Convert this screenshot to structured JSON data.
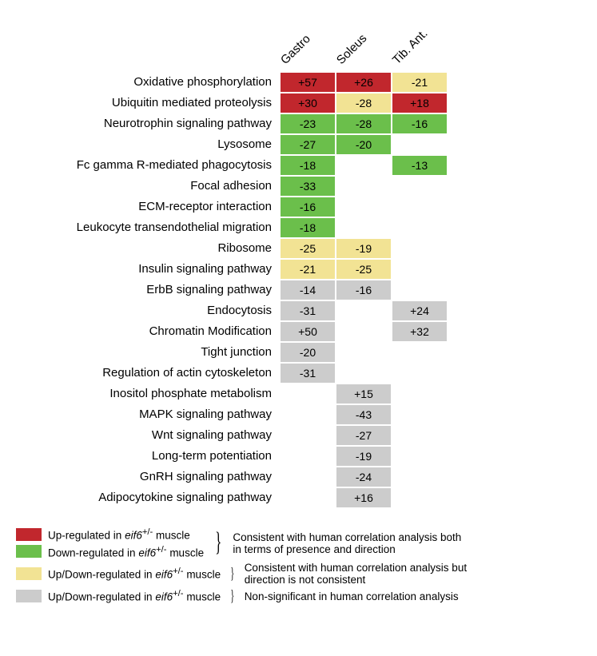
{
  "colors": {
    "red": "#c1272d",
    "green": "#6bbf4b",
    "yellow": "#f2e394",
    "grey": "#cccccc",
    "text": "#000000",
    "bg": "#ffffff"
  },
  "columns": [
    "Gastro",
    "Soleus",
    "Tib. Ant."
  ],
  "rows": [
    {
      "label": "Oxidative phosphorylation",
      "cells": [
        {
          "v": "+57",
          "c": "red"
        },
        {
          "v": "+26",
          "c": "red"
        },
        {
          "v": "-21",
          "c": "yellow"
        }
      ]
    },
    {
      "label": "Ubiquitin mediated proteolysis",
      "cells": [
        {
          "v": "+30",
          "c": "red"
        },
        {
          "v": "-28",
          "c": "yellow"
        },
        {
          "v": "+18",
          "c": "red"
        }
      ]
    },
    {
      "label": "Neurotrophin signaling pathway",
      "cells": [
        {
          "v": "-23",
          "c": "green"
        },
        {
          "v": "-28",
          "c": "green"
        },
        {
          "v": "-16",
          "c": "green"
        }
      ]
    },
    {
      "label": "Lysosome",
      "cells": [
        {
          "v": "-27",
          "c": "green"
        },
        {
          "v": "-20",
          "c": "green"
        },
        null
      ]
    },
    {
      "label": "Fc gamma R-mediated phagocytosis",
      "cells": [
        {
          "v": "-18",
          "c": "green"
        },
        null,
        {
          "v": "-13",
          "c": "green"
        }
      ]
    },
    {
      "label": "Focal adhesion",
      "cells": [
        {
          "v": "-33",
          "c": "green"
        },
        null,
        null
      ]
    },
    {
      "label": "ECM-receptor interaction",
      "cells": [
        {
          "v": "-16",
          "c": "green"
        },
        null,
        null
      ]
    },
    {
      "label": "Leukocyte transendothelial migration",
      "cells": [
        {
          "v": "-18",
          "c": "green"
        },
        null,
        null
      ]
    },
    {
      "label": "Ribosome",
      "cells": [
        {
          "v": "-25",
          "c": "yellow"
        },
        {
          "v": "-19",
          "c": "yellow"
        },
        null
      ]
    },
    {
      "label": "Insulin signaling pathway",
      "cells": [
        {
          "v": "-21",
          "c": "yellow"
        },
        {
          "v": "-25",
          "c": "yellow"
        },
        null
      ]
    },
    {
      "label": "ErbB signaling pathway",
      "cells": [
        {
          "v": "-14",
          "c": "grey"
        },
        {
          "v": "-16",
          "c": "grey"
        },
        null
      ]
    },
    {
      "label": "Endocytosis",
      "cells": [
        {
          "v": "-31",
          "c": "grey"
        },
        null,
        {
          "v": "+24",
          "c": "grey"
        }
      ]
    },
    {
      "label": "Chromatin Modification",
      "cells": [
        {
          "v": "+50",
          "c": "grey"
        },
        null,
        {
          "v": "+32",
          "c": "grey"
        }
      ]
    },
    {
      "label": "Tight junction",
      "cells": [
        {
          "v": "-20",
          "c": "grey"
        },
        null,
        null
      ]
    },
    {
      "label": "Regulation of actin cytoskeleton",
      "cells": [
        {
          "v": "-31",
          "c": "grey"
        },
        null,
        null
      ]
    },
    {
      "label": "Inositol phosphate metabolism",
      "cells": [
        null,
        {
          "v": "+15",
          "c": "grey"
        },
        null
      ]
    },
    {
      "label": "MAPK signaling pathway",
      "cells": [
        null,
        {
          "v": "-43",
          "c": "grey"
        },
        null
      ]
    },
    {
      "label": "Wnt signaling pathway",
      "cells": [
        null,
        {
          "v": "-27",
          "c": "grey"
        },
        null
      ]
    },
    {
      "label": "Long-term potentiation",
      "cells": [
        null,
        {
          "v": "-19",
          "c": "grey"
        },
        null
      ]
    },
    {
      "label": "GnRH signaling pathway",
      "cells": [
        null,
        {
          "v": "-24",
          "c": "grey"
        },
        null
      ]
    },
    {
      "label": "Adipocytokine signaling pathway",
      "cells": [
        null,
        {
          "v": "+16",
          "c": "grey"
        },
        null
      ]
    }
  ],
  "legend": {
    "group1": {
      "items": [
        {
          "color": "red",
          "label_pre": "Up-regulated in ",
          "label_it": "eif6",
          "label_sup": "+/-",
          "label_post": " muscle"
        },
        {
          "color": "green",
          "label_pre": "Down-regulated in ",
          "label_it": "eif6",
          "label_sup": "+/-",
          "label_post": " muscle"
        }
      ],
      "note": "Consistent with human correlation analysis both in terms of presence and direction"
    },
    "group2": {
      "item": {
        "color": "yellow",
        "label_pre": "Up/Down-regulated in ",
        "label_it": "eif6",
        "label_sup": "+/-",
        "label_post": " muscle"
      },
      "note": "Consistent with human correlation analysis but direction is not consistent"
    },
    "group3": {
      "item": {
        "color": "grey",
        "label_pre": "Up/Down-regulated in ",
        "label_it": "eif6",
        "label_sup": "+/-",
        "label_post": " muscle"
      },
      "note": "Non-significant in human correlation analysis"
    }
  }
}
